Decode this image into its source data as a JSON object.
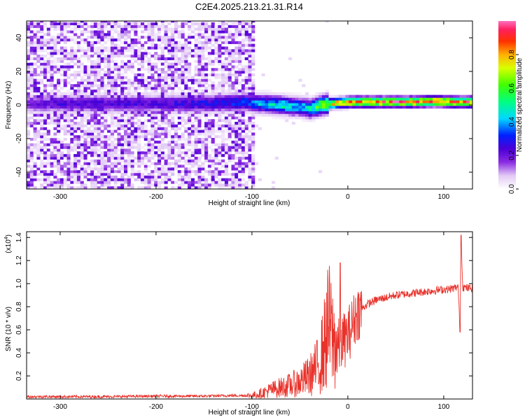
{
  "title": "C2E4.2025.213.21.31.R14",
  "chart_data": [
    {
      "type": "heatmap",
      "xlabel": "Height of straight line (km)",
      "ylabel": "Frequency (Hz)",
      "xlim": [
        -335,
        130
      ],
      "ylim": [
        -50,
        50
      ],
      "x_ticks": [
        -300,
        -200,
        -100,
        0,
        100
      ],
      "y_ticks": [
        -40,
        -20,
        0,
        20,
        40
      ],
      "colorbar": {
        "label": "Normalized spectral amplitude",
        "range": [
          0.0,
          1.0
        ],
        "ticks": [
          0.0,
          0.2,
          0.4,
          0.6,
          0.8
        ]
      },
      "ridge": {
        "x": [
          -335,
          -300,
          -250,
          -200,
          -150,
          -110,
          -90,
          -70,
          -50,
          -40,
          -30,
          -20,
          -10,
          0,
          10,
          30,
          60,
          90,
          110,
          130
        ],
        "frequency": [
          0,
          0,
          0,
          0,
          0,
          1,
          0,
          -1,
          -2,
          -3,
          -1,
          0,
          0.5,
          1,
          1,
          1,
          1,
          1.5,
          1,
          1
        ],
        "amplitude": [
          0.2,
          0.25,
          0.25,
          0.25,
          0.3,
          0.35,
          0.45,
          0.5,
          0.45,
          0.5,
          0.7,
          0.8,
          0.85,
          0.9,
          0.9,
          0.9,
          0.95,
          0.95,
          0.95,
          0.92
        ]
      },
      "noise_region_x": [
        -335,
        -100
      ]
    },
    {
      "type": "line",
      "xlabel": "Height of straight line (km)",
      "ylabel": "SNR (10 * v/v)",
      "y_scale_label": "(x10",
      "y_scale_exponent": "4",
      "xlim": [
        -335,
        130
      ],
      "ylim": [
        0,
        1.45
      ],
      "x_ticks": [
        -300,
        -200,
        -100,
        0,
        100
      ],
      "y_ticks": [
        0.2,
        0.4,
        0.6,
        0.8,
        1.0,
        1.2,
        1.4
      ],
      "color": "#e8322b",
      "series": [
        {
          "x": [
            -335,
            -300,
            -250,
            -200,
            -150,
            -120,
            -100,
            -90,
            -80,
            -70,
            -60,
            -50,
            -40,
            -35,
            -30,
            -25,
            -20,
            -15,
            -10,
            -5,
            0,
            5,
            10,
            20,
            30,
            40,
            50,
            60,
            70,
            80,
            90,
            100,
            105,
            110,
            115,
            117,
            118,
            120,
            125,
            130
          ],
          "values": [
            0.02,
            0.02,
            0.02,
            0.025,
            0.025,
            0.03,
            0.03,
            0.05,
            0.08,
            0.1,
            0.12,
            0.15,
            0.2,
            0.25,
            0.3,
            0.45,
            0.65,
            0.5,
            0.45,
            0.5,
            0.55,
            0.65,
            0.75,
            0.82,
            0.86,
            0.88,
            0.9,
            0.91,
            0.92,
            0.93,
            0.94,
            0.95,
            0.95,
            0.96,
            0.97,
            0.6,
            1.4,
            0.97,
            0.96,
            0.96
          ]
        }
      ]
    }
  ]
}
